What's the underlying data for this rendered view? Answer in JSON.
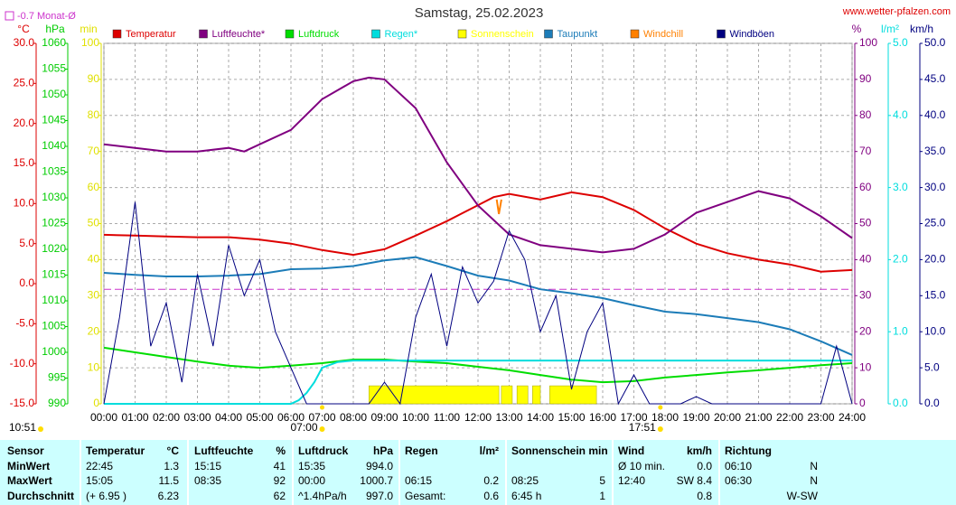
{
  "chart_data": {
    "type": "line",
    "title": "Samstag, 25.02.2023",
    "site": "www.wetter-pfalzen.com",
    "reference_line": {
      "label": "-0.7 Monat-Ø",
      "value": -0.7,
      "axis": 0,
      "color": "#cc33cc"
    },
    "daylength": "10:51",
    "sunrise": "07:00",
    "sunset": "17:51",
    "grid": true,
    "grid_axis": 3,
    "xlim": [
      0,
      24
    ],
    "xticks": [
      {
        "value": 0,
        "label": "00:00"
      },
      {
        "value": 1,
        "label": "01:00"
      },
      {
        "value": 2,
        "label": "02:00"
      },
      {
        "value": 3,
        "label": "03:00"
      },
      {
        "value": 4,
        "label": "04:00"
      },
      {
        "value": 5,
        "label": "05:00"
      },
      {
        "value": 6,
        "label": "06:00"
      },
      {
        "value": 7,
        "label": "07:00"
      },
      {
        "value": 8,
        "label": "08:00"
      },
      {
        "value": 9,
        "label": "09:00"
      },
      {
        "value": 10,
        "label": "10:00"
      },
      {
        "value": 11,
        "label": "11:00"
      },
      {
        "value": 12,
        "label": "12:00"
      },
      {
        "value": 13,
        "label": "13:00"
      },
      {
        "value": 14,
        "label": "14:00"
      },
      {
        "value": 15,
        "label": "15:00"
      },
      {
        "value": 16,
        "label": "16:00"
      },
      {
        "value": 17,
        "label": "17:00"
      },
      {
        "value": 18,
        "label": "18:00"
      },
      {
        "value": 19,
        "label": "19:00"
      },
      {
        "value": 20,
        "label": "20:00"
      },
      {
        "value": 21,
        "label": "21:00"
      },
      {
        "value": 22,
        "label": "22:00"
      },
      {
        "value": 23,
        "label": "23:00"
      },
      {
        "value": 24,
        "label": "24:00"
      }
    ],
    "axes": [
      {
        "label": "°C",
        "color": "#dd0000",
        "side": "left",
        "lim": [
          -15,
          30
        ],
        "ticks": [
          {
            "value": -15,
            "label": "-15.0"
          },
          {
            "value": -10,
            "label": "-10.0"
          },
          {
            "value": -5,
            "label": "-5.0"
          },
          {
            "value": 0,
            "label": "0.0"
          },
          {
            "value": 5,
            "label": "5.0"
          },
          {
            "value": 10,
            "label": "10.0"
          },
          {
            "value": 15,
            "label": "15.0"
          },
          {
            "value": 20,
            "label": "20.0"
          },
          {
            "value": 25,
            "label": "25.0"
          },
          {
            "value": 30,
            "label": "30.0"
          }
        ]
      },
      {
        "label": "hPa",
        "color": "#00cc00",
        "side": "left",
        "lim": [
          990,
          1060
        ],
        "ticks": [
          990,
          995,
          1000,
          1005,
          1010,
          1015,
          1020,
          1025,
          1030,
          1035,
          1040,
          1045,
          1050,
          1055,
          1060
        ]
      },
      {
        "label": "min",
        "color": "#e0e000",
        "side": "left",
        "lim": [
          0,
          100
        ],
        "ticks": [
          0,
          10,
          20,
          30,
          40,
          50,
          60,
          70,
          80,
          90,
          100
        ]
      },
      {
        "label": "%",
        "color": "#800080",
        "side": "right",
        "lim": [
          0,
          100
        ],
        "ticks": [
          0,
          10,
          20,
          30,
          40,
          50,
          60,
          70,
          80,
          90,
          100
        ]
      },
      {
        "label": "l/m²",
        "color": "#00dddd",
        "side": "right",
        "lim": [
          0,
          5
        ],
        "ticks": [
          {
            "value": 0,
            "label": "0.0"
          },
          {
            "value": 1,
            "label": "1.0"
          },
          {
            "value": 2,
            "label": "2.0"
          },
          {
            "value": 3,
            "label": "3.0"
          },
          {
            "value": 4,
            "label": "4.0"
          },
          {
            "value": 5,
            "label": "5.0"
          }
        ]
      },
      {
        "label": "km/h",
        "color": "#000080",
        "side": "right",
        "lim": [
          0,
          50
        ],
        "ticks": [
          {
            "value": 0,
            "label": "0.0"
          },
          {
            "value": 5,
            "label": "5.0"
          },
          {
            "value": 10,
            "label": "10.0"
          },
          {
            "value": 15,
            "label": "15.0"
          },
          {
            "value": 20,
            "label": "20.0"
          },
          {
            "value": 25,
            "label": "25.0"
          },
          {
            "value": 30,
            "label": "30.0"
          },
          {
            "value": 35,
            "label": "35.0"
          },
          {
            "value": 40,
            "label": "40.0"
          },
          {
            "value": 45,
            "label": "45.0"
          },
          {
            "value": 50,
            "label": "50.0"
          }
        ]
      }
    ],
    "series": [
      {
        "name": "Temperatur",
        "type": "line",
        "axis": 0,
        "color": "#dd0000",
        "x": [
          0,
          1,
          2,
          3,
          4,
          5,
          6,
          7,
          8,
          9,
          10,
          11,
          12,
          12.5,
          13,
          14,
          15,
          16,
          17,
          18,
          19,
          20,
          21,
          22,
          23,
          24
        ],
        "values": [
          6.1,
          6.0,
          5.9,
          5.8,
          5.8,
          5.5,
          5.0,
          4.2,
          3.6,
          4.3,
          6.0,
          7.8,
          9.8,
          10.8,
          11.2,
          10.5,
          11.4,
          10.8,
          9.2,
          6.9,
          5.0,
          3.8,
          3.0,
          2.4,
          1.5,
          1.7
        ]
      },
      {
        "name": "Luftfeuchte*",
        "type": "line",
        "axis": 3,
        "color": "#800080",
        "x": [
          0,
          1,
          2,
          3,
          4,
          4.5,
          5,
          6,
          7,
          8,
          8.5,
          9,
          10,
          11,
          12,
          13,
          14,
          15,
          16,
          17,
          18,
          19,
          20,
          21,
          22,
          23,
          24
        ],
        "values": [
          72,
          71,
          70,
          70,
          71,
          70,
          72,
          76,
          84.5,
          89.5,
          90.5,
          90,
          82,
          67,
          55,
          47,
          44,
          43,
          42,
          43,
          47,
          53,
          56,
          59,
          57,
          52,
          46
        ]
      },
      {
        "name": "Luftdruck",
        "type": "line",
        "axis": 1,
        "color": "#00dd00",
        "x": [
          0,
          1,
          2,
          3,
          4,
          5,
          6,
          7,
          8,
          9,
          10,
          11,
          12,
          13,
          14,
          15,
          16,
          17,
          18,
          19,
          20,
          21,
          22,
          23,
          24
        ],
        "values": [
          1000.9,
          1000,
          999.1,
          998.2,
          997.4,
          997.0,
          997.4,
          997.9,
          998.6,
          998.6,
          998.2,
          997.9,
          997.2,
          996.5,
          995.6,
          994.7,
          994.2,
          994.4,
          995.1,
          995.6,
          996.1,
          996.5,
          997.0,
          997.5,
          997.9
        ]
      },
      {
        "name": "Regen*",
        "type": "line",
        "axis": 4,
        "color": "#00dddd",
        "x": [
          0,
          6,
          6.25,
          6.5,
          6.75,
          7,
          7.5,
          8,
          24
        ],
        "values": [
          0,
          0,
          0.05,
          0.15,
          0.3,
          0.5,
          0.58,
          0.6,
          0.6
        ]
      },
      {
        "name": "Sonnenschein",
        "type": "bars",
        "axis": 2,
        "color": "#ffff00",
        "x": [
          [
            8.5,
            12.67
          ],
          [
            12.75,
            13.1
          ],
          [
            13.25,
            13.6
          ],
          [
            13.75,
            14.0
          ],
          [
            14.3,
            15.8
          ]
        ],
        "values": [
          5,
          5,
          5,
          5,
          5
        ]
      },
      {
        "name": "Taupunkt",
        "type": "line",
        "axis": 0,
        "color": "#1c7cb8",
        "x": [
          0,
          1,
          2,
          3,
          4,
          5,
          6,
          7,
          8,
          9,
          10,
          11,
          12,
          13,
          14,
          15,
          16,
          17,
          18,
          19,
          20,
          21,
          22,
          23,
          24
        ],
        "values": [
          1.35,
          1.1,
          0.9,
          0.9,
          1.0,
          1.2,
          1.8,
          1.9,
          2.2,
          2.9,
          3.3,
          2.2,
          1.0,
          0.4,
          -0.7,
          -1.2,
          -1.8,
          -2.7,
          -3.5,
          -3.8,
          -4.3,
          -4.8,
          -5.7,
          -7.2,
          -8.9
        ]
      },
      {
        "name": "Windchill",
        "type": "line",
        "axis": 0,
        "color": "#ff8000",
        "x": [
          12.6,
          12.67,
          12.75
        ],
        "values": [
          10.5,
          8.7,
          10.5
        ]
      },
      {
        "name": "Windböen",
        "type": "line",
        "axis": 5,
        "color": "#000080",
        "x": [
          0,
          0.5,
          1,
          1.5,
          2,
          2.5,
          3,
          3.5,
          4,
          4.5,
          5,
          5.5,
          6,
          6.5,
          7,
          7.5,
          8,
          8.5,
          9,
          9.5,
          10,
          10.5,
          11,
          11.5,
          12,
          12.5,
          13,
          13.5,
          14,
          14.5,
          15,
          15.5,
          16,
          16.5,
          17,
          17.5,
          18,
          18.5,
          19,
          19.5,
          20,
          20.5,
          21,
          21.5,
          22,
          22.5,
          23,
          23.5,
          24
        ],
        "values": [
          0,
          12,
          28,
          8,
          14,
          3,
          18,
          8,
          22,
          15,
          20,
          10,
          5,
          0,
          0,
          0,
          0,
          0,
          3,
          0,
          12,
          18,
          8,
          19,
          14,
          17,
          24,
          20,
          10,
          15,
          2,
          10,
          14,
          0,
          4,
          0,
          0,
          0,
          1,
          0,
          0,
          0,
          0,
          0,
          0,
          0,
          0,
          8,
          0
        ]
      }
    ]
  },
  "table": {
    "header": [
      "Sensor",
      "Temperatur",
      "°C",
      "Luftfeuchte",
      "%",
      "Luftdruck",
      "hPa",
      "Regen",
      "l/m²",
      "Sonnenschein min",
      null,
      "Wind",
      "km/h",
      "Richtung",
      null
    ],
    "rows": [
      [
        "MinWert",
        "22:45",
        "1.3",
        "15:15",
        "41",
        "15:35",
        "994.0",
        null,
        null,
        null,
        null,
        "Ø 10 min.",
        "0.0",
        "06:10",
        "N"
      ],
      [
        "MaxWert",
        "15:05",
        "11.5",
        "08:35",
        "92",
        "00:00",
        "1000.7",
        "06:15",
        "0.2",
        "08:25",
        "5",
        "12:40",
        "SW 8.4",
        "06:30",
        "N"
      ],
      [
        "Durchschnitt",
        "(+ 6.95 )",
        "6.23",
        null,
        "62",
        "^1.4hPa/h",
        "997.0",
        "Gesamt:",
        "0.6",
        "6:45 h",
        "1",
        null,
        "0.8",
        null,
        "W-SW"
      ]
    ]
  }
}
